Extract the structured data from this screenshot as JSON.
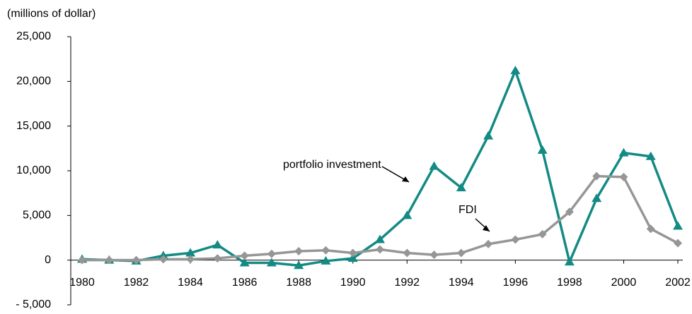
{
  "chart_data": {
    "type": "line",
    "y_axis_label": "(millions of dollar)",
    "x": [
      1980,
      1981,
      1982,
      1983,
      1984,
      1985,
      1986,
      1987,
      1988,
      1989,
      1990,
      1991,
      1992,
      1993,
      1994,
      1995,
      1996,
      1997,
      1998,
      1999,
      2000,
      2001,
      2002
    ],
    "series": [
      {
        "name": "portfolio investment",
        "color": "#138a84",
        "marker": "triangle",
        "values": [
          100,
          0,
          -100,
          500,
          800,
          1700,
          -300,
          -300,
          -600,
          -100,
          200,
          2300,
          5000,
          10500,
          8100,
          13900,
          21200,
          12300,
          -200,
          6900,
          12000,
          11600,
          3800
        ]
      },
      {
        "name": "FDI",
        "color": "#969696",
        "marker": "diamond",
        "values": [
          0,
          0,
          0,
          100,
          100,
          200,
          500,
          700,
          1000,
          1100,
          800,
          1200,
          800,
          600,
          800,
          1800,
          2300,
          2900,
          5400,
          9400,
          9300,
          3500,
          1900
        ]
      }
    ],
    "xlim": [
      1980,
      2002
    ],
    "xticks": [
      1980,
      1982,
      1984,
      1986,
      1988,
      1990,
      1992,
      1994,
      1996,
      1998,
      2000,
      2002
    ],
    "ylim": [
      -5000,
      25000
    ],
    "yticks": [
      {
        "value": -5000,
        "label": "- 5,000"
      },
      0,
      {
        "value": 5000,
        "label": "5,000"
      },
      {
        "value": 10000,
        "label": "10,000"
      },
      {
        "value": 15000,
        "label": "15,000"
      },
      {
        "value": 20000,
        "label": "20,000"
      },
      {
        "value": 25000,
        "label": "25,000"
      }
    ],
    "grid": false
  }
}
